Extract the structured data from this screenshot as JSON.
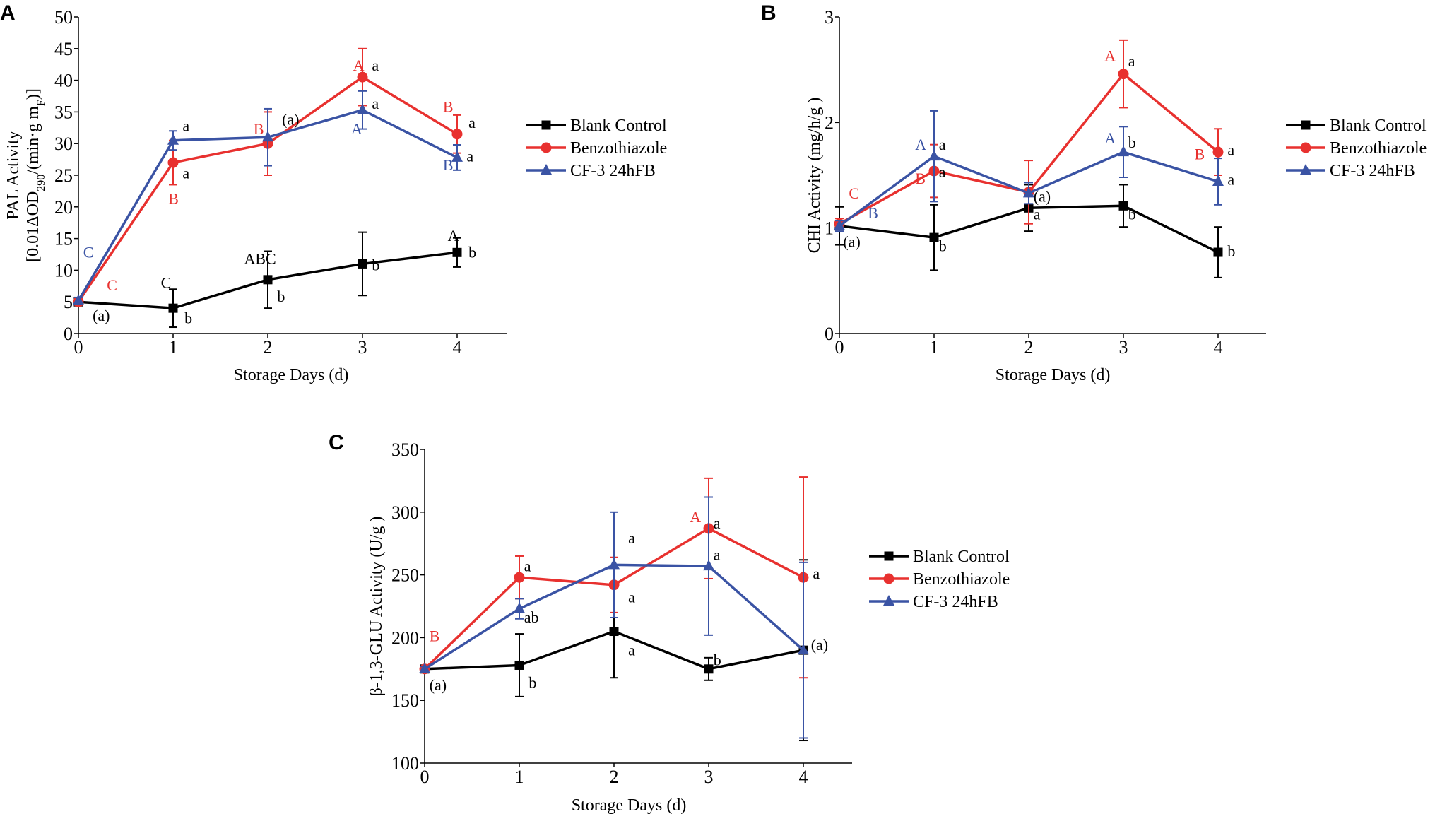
{
  "colors": {
    "black": "#000000",
    "red": "#e8312f",
    "blue": "#3a53a4"
  },
  "legend": [
    "Blank Control",
    "Benzothiazole",
    "CF-3 24hFB"
  ],
  "chart_data": [
    {
      "panel": "A",
      "type": "line",
      "xlabel": "Storage Days (d)",
      "ylabel_line1": "PAL Activity",
      "ylabel_line2_parts": [
        "[0.01ΔOD",
        "290",
        "/(min·g m",
        "F",
        ")]"
      ],
      "x": [
        0,
        1,
        2,
        3,
        4
      ],
      "ylim": [
        0,
        50
      ],
      "yticks": [
        0,
        5,
        10,
        15,
        20,
        25,
        30,
        35,
        40,
        45,
        50
      ],
      "series": [
        {
          "name": "Blank Control",
          "color": "black",
          "marker": "square",
          "values": [
            5,
            4,
            8.5,
            11,
            12.8
          ],
          "errors": [
            0.5,
            3,
            4.5,
            5,
            2.3
          ]
        },
        {
          "name": "Benzothiazole",
          "color": "red",
          "marker": "circle",
          "values": [
            5,
            27,
            30,
            40.5,
            31.5
          ],
          "errors": [
            0.5,
            3.5,
            5,
            4.5,
            3
          ]
        },
        {
          "name": "CF-3 24hFB",
          "color": "blue",
          "marker": "triangle",
          "values": [
            5.2,
            30.5,
            31,
            35.3,
            27.8
          ],
          "errors": [
            0.5,
            1.5,
            4.5,
            3,
            2
          ]
        }
      ],
      "annotations": [
        {
          "text": "C",
          "x": 0.05,
          "y": 12,
          "color": "blue"
        },
        {
          "text": "C",
          "x": 0.3,
          "y": 6.8,
          "color": "red"
        },
        {
          "text": "(a)",
          "x": 0.15,
          "y": 2,
          "color": "black"
        },
        {
          "text": "a",
          "x": 1.1,
          "y": 32,
          "color": "black"
        },
        {
          "text": "a",
          "x": 1.1,
          "y": 24.5,
          "color": "black"
        },
        {
          "text": "B",
          "x": 0.95,
          "y": 20.5,
          "color": "red"
        },
        {
          "text": "C",
          "x": 0.87,
          "y": 7.2,
          "color": "black"
        },
        {
          "text": "b",
          "x": 1.12,
          "y": 1.6,
          "color": "black"
        },
        {
          "text": "B",
          "x": 1.85,
          "y": 31.5,
          "color": "red"
        },
        {
          "text": "(a)",
          "x": 2.15,
          "y": 33,
          "color": "black"
        },
        {
          "text": "ABC",
          "x": 1.75,
          "y": 11,
          "color": "black"
        },
        {
          "text": "b",
          "x": 2.1,
          "y": 5,
          "color": "black"
        },
        {
          "text": "A",
          "x": 2.9,
          "y": 41.5,
          "color": "red"
        },
        {
          "text": "a",
          "x": 3.1,
          "y": 41.5,
          "color": "black"
        },
        {
          "text": "a",
          "x": 3.1,
          "y": 35.5,
          "color": "black"
        },
        {
          "text": "A",
          "x": 2.88,
          "y": 31.5,
          "color": "blue"
        },
        {
          "text": "b",
          "x": 3.1,
          "y": 10,
          "color": "black"
        },
        {
          "text": "B",
          "x": 3.85,
          "y": 35,
          "color": "red"
        },
        {
          "text": "a",
          "x": 4.12,
          "y": 32.5,
          "color": "black"
        },
        {
          "text": "a",
          "x": 4.1,
          "y": 27.2,
          "color": "black"
        },
        {
          "text": "B",
          "x": 3.85,
          "y": 25.8,
          "color": "blue"
        },
        {
          "text": "A",
          "x": 3.9,
          "y": 14.6,
          "color": "black"
        },
        {
          "text": "b",
          "x": 4.12,
          "y": 12,
          "color": "black"
        }
      ]
    },
    {
      "panel": "B",
      "type": "line",
      "xlabel": "Storage Days (d)",
      "ylabel_line1": "CHI Activity (mg/h/g )",
      "x": [
        0,
        1,
        2,
        3,
        4
      ],
      "ylim": [
        0,
        3
      ],
      "yticks": [
        0,
        1,
        2,
        3
      ],
      "series": [
        {
          "name": "Blank Control",
          "color": "black",
          "marker": "square",
          "values": [
            1.02,
            0.91,
            1.19,
            1.21,
            0.77
          ],
          "errors": [
            0.18,
            0.31,
            0.22,
            0.2,
            0.24
          ]
        },
        {
          "name": "Benzothiazole",
          "color": "red",
          "marker": "circle",
          "values": [
            1.04,
            1.54,
            1.34,
            2.46,
            1.72
          ],
          "errors": [
            0.05,
            0.25,
            0.3,
            0.32,
            0.22
          ]
        },
        {
          "name": "CF-3 24hFB",
          "color": "blue",
          "marker": "triangle",
          "values": [
            1.02,
            1.68,
            1.33,
            1.72,
            1.44
          ],
          "errors": [
            0.05,
            0.43,
            0.1,
            0.24,
            0.22
          ]
        }
      ],
      "annotations": [
        {
          "text": "C",
          "x": 0.1,
          "y": 1.28,
          "color": "red"
        },
        {
          "text": "B",
          "x": 0.3,
          "y": 1.09,
          "color": "blue"
        },
        {
          "text": "(a)",
          "x": 0.04,
          "y": 0.82,
          "color": "black"
        },
        {
          "text": "A",
          "x": 0.8,
          "y": 1.74,
          "color": "blue"
        },
        {
          "text": "a",
          "x": 1.05,
          "y": 1.74,
          "color": "black"
        },
        {
          "text": "B",
          "x": 0.8,
          "y": 1.42,
          "color": "red"
        },
        {
          "text": "a",
          "x": 1.05,
          "y": 1.48,
          "color": "black"
        },
        {
          "text": "b",
          "x": 1.05,
          "y": 0.78,
          "color": "black"
        },
        {
          "text": "(a)",
          "x": 2.05,
          "y": 1.25,
          "color": "black"
        },
        {
          "text": "a",
          "x": 2.05,
          "y": 1.08,
          "color": "black"
        },
        {
          "text": "A",
          "x": 2.8,
          "y": 2.58,
          "color": "red"
        },
        {
          "text": "a",
          "x": 3.05,
          "y": 2.53,
          "color": "black"
        },
        {
          "text": "A",
          "x": 2.8,
          "y": 1.8,
          "color": "blue"
        },
        {
          "text": "b",
          "x": 3.05,
          "y": 1.76,
          "color": "black"
        },
        {
          "text": "b",
          "x": 3.05,
          "y": 1.08,
          "color": "black"
        },
        {
          "text": "B",
          "x": 3.75,
          "y": 1.65,
          "color": "red"
        },
        {
          "text": "a",
          "x": 4.1,
          "y": 1.69,
          "color": "black"
        },
        {
          "text": "a",
          "x": 4.1,
          "y": 1.41,
          "color": "black"
        },
        {
          "text": "b",
          "x": 4.1,
          "y": 0.73,
          "color": "black"
        }
      ]
    },
    {
      "panel": "C",
      "type": "line",
      "xlabel": "Storage Days (d)",
      "ylabel_line1": "β-1,3-GLU Activity (U/g )",
      "x": [
        0,
        1,
        2,
        3,
        4
      ],
      "ylim": [
        100,
        350
      ],
      "yticks": [
        100,
        150,
        200,
        250,
        300,
        350
      ],
      "series": [
        {
          "name": "Blank Control",
          "color": "black",
          "marker": "square",
          "values": [
            175,
            178,
            205,
            175,
            190
          ],
          "errors": [
            2,
            25,
            37,
            9,
            72
          ]
        },
        {
          "name": "Benzothiazole",
          "color": "red",
          "marker": "circle",
          "values": [
            175,
            248,
            242,
            287,
            248
          ],
          "errors": [
            2,
            17,
            22,
            40,
            80
          ]
        },
        {
          "name": "CF-3 24hFB",
          "color": "blue",
          "marker": "triangle",
          "values": [
            175,
            223,
            258,
            257,
            190
          ],
          "errors": [
            2,
            8,
            42,
            55,
            70
          ]
        }
      ],
      "annotations": [
        {
          "text": "B",
          "x": 0.05,
          "y": 197,
          "color": "red"
        },
        {
          "text": "(a)",
          "x": 0.05,
          "y": 158,
          "color": "black"
        },
        {
          "text": "a",
          "x": 1.05,
          "y": 253,
          "color": "black"
        },
        {
          "text": "ab",
          "x": 1.05,
          "y": 212,
          "color": "black"
        },
        {
          "text": "b",
          "x": 1.1,
          "y": 160,
          "color": "black"
        },
        {
          "text": "a",
          "x": 2.15,
          "y": 275,
          "color": "black"
        },
        {
          "text": "a",
          "x": 2.15,
          "y": 228,
          "color": "black"
        },
        {
          "text": "a",
          "x": 2.15,
          "y": 186,
          "color": "black"
        },
        {
          "text": "A",
          "x": 2.8,
          "y": 292,
          "color": "red"
        },
        {
          "text": "a",
          "x": 3.05,
          "y": 287,
          "color": "black"
        },
        {
          "text": "a",
          "x": 3.05,
          "y": 262,
          "color": "black"
        },
        {
          "text": "b",
          "x": 3.05,
          "y": 178,
          "color": "black"
        },
        {
          "text": "a",
          "x": 4.1,
          "y": 247,
          "color": "black"
        },
        {
          "text": "(a)",
          "x": 4.08,
          "y": 190,
          "color": "black"
        }
      ]
    }
  ]
}
